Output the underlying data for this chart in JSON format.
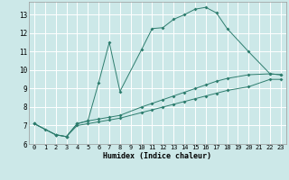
{
  "xlabel": "Humidex (Indice chaleur)",
  "background_color": "#cce8e8",
  "grid_color": "#ffffff",
  "line_color": "#2e7d6e",
  "xlim": [
    -0.5,
    23.5
  ],
  "ylim": [
    6.0,
    13.7
  ],
  "xticks": [
    0,
    1,
    2,
    3,
    4,
    5,
    6,
    7,
    8,
    9,
    10,
    11,
    12,
    13,
    14,
    15,
    16,
    17,
    18,
    19,
    20,
    21,
    22,
    23
  ],
  "yticks": [
    6,
    7,
    8,
    9,
    10,
    11,
    12,
    13
  ],
  "line1_x": [
    0,
    1,
    2,
    3,
    4,
    5,
    6,
    7,
    8,
    10,
    11,
    12,
    13,
    14,
    15,
    16,
    17,
    18,
    20,
    22,
    23
  ],
  "line1_y": [
    7.1,
    6.8,
    6.5,
    6.4,
    7.1,
    7.25,
    9.3,
    11.5,
    8.85,
    11.1,
    12.25,
    12.3,
    12.75,
    13.0,
    13.3,
    13.4,
    13.1,
    12.25,
    11.0,
    9.8,
    9.75
  ],
  "line2_x": [
    0,
    2,
    3,
    4,
    5,
    6,
    7,
    8,
    10,
    11,
    12,
    13,
    14,
    15,
    16,
    17,
    18,
    20,
    22,
    23
  ],
  "line2_y": [
    7.1,
    6.5,
    6.4,
    7.1,
    7.25,
    7.35,
    7.45,
    7.55,
    8.0,
    8.2,
    8.4,
    8.6,
    8.8,
    9.0,
    9.2,
    9.4,
    9.55,
    9.75,
    9.8,
    9.75
  ],
  "line3_x": [
    0,
    2,
    3,
    4,
    5,
    6,
    7,
    8,
    10,
    11,
    12,
    13,
    14,
    15,
    16,
    17,
    18,
    20,
    22,
    23
  ],
  "line3_y": [
    7.1,
    6.5,
    6.4,
    7.0,
    7.1,
    7.2,
    7.3,
    7.4,
    7.7,
    7.85,
    8.0,
    8.15,
    8.3,
    8.45,
    8.6,
    8.75,
    8.9,
    9.1,
    9.5,
    9.5
  ]
}
